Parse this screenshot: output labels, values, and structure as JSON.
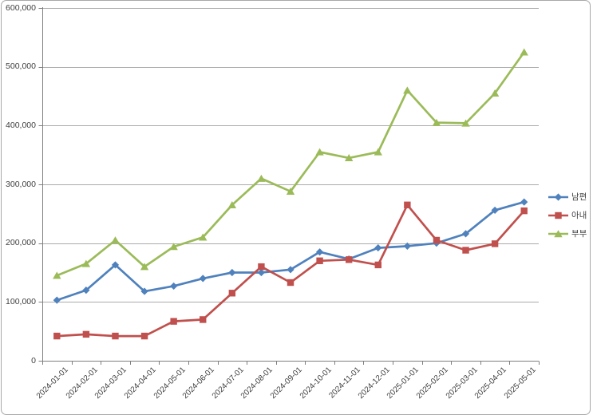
{
  "chart_data": {
    "type": "line",
    "title": "",
    "xlabel": "",
    "ylabel": "",
    "categories": [
      "2024-01-01",
      "2024-02-01",
      "2024-03-01",
      "2024-04-01",
      "2024-05-01",
      "2024-06-01",
      "2024-07-01",
      "2024-08-01",
      "2024-09-01",
      "2024-10-01",
      "2024-11-01",
      "2024-12-01",
      "2025-01-01",
      "2025-02-01",
      "2025-03-01",
      "2025-04-01",
      "2025-05-01"
    ],
    "series": [
      {
        "key": "husband",
        "name": "남편",
        "marker": "diamond",
        "color": "#4F81BD",
        "values": [
          103000,
          120000,
          163000,
          118000,
          127000,
          140000,
          150000,
          150000,
          155000,
          185000,
          173000,
          192000,
          195000,
          200000,
          216000,
          256000,
          270000
        ]
      },
      {
        "key": "wife",
        "name": "아내",
        "marker": "square",
        "color": "#C0504D",
        "values": [
          42000,
          45000,
          42000,
          42000,
          67000,
          70000,
          115000,
          160000,
          133000,
          170000,
          172000,
          163000,
          265000,
          205000,
          188000,
          199000,
          255000
        ]
      },
      {
        "key": "couple",
        "name": "부부",
        "marker": "triangle",
        "color": "#9BBB59",
        "values": [
          145000,
          165000,
          205000,
          160000,
          194000,
          210000,
          265000,
          310000,
          288000,
          355000,
          345000,
          355000,
          460000,
          405000,
          404000,
          455000,
          525000
        ]
      }
    ],
    "ylim": [
      0,
      600000
    ],
    "ytick_step": 100000,
    "ytick_labels": [
      "0",
      "100,000",
      "200,000",
      "300,000",
      "400,000",
      "500,000",
      "600,000"
    ],
    "grid": "horizontal",
    "legend_position": "right"
  },
  "colors": {
    "gridline": "#ababab",
    "axis": "#7f7f7f",
    "text": "#3f3f3f",
    "frame_border": "#a8a8a8",
    "background": "#ffffff"
  }
}
